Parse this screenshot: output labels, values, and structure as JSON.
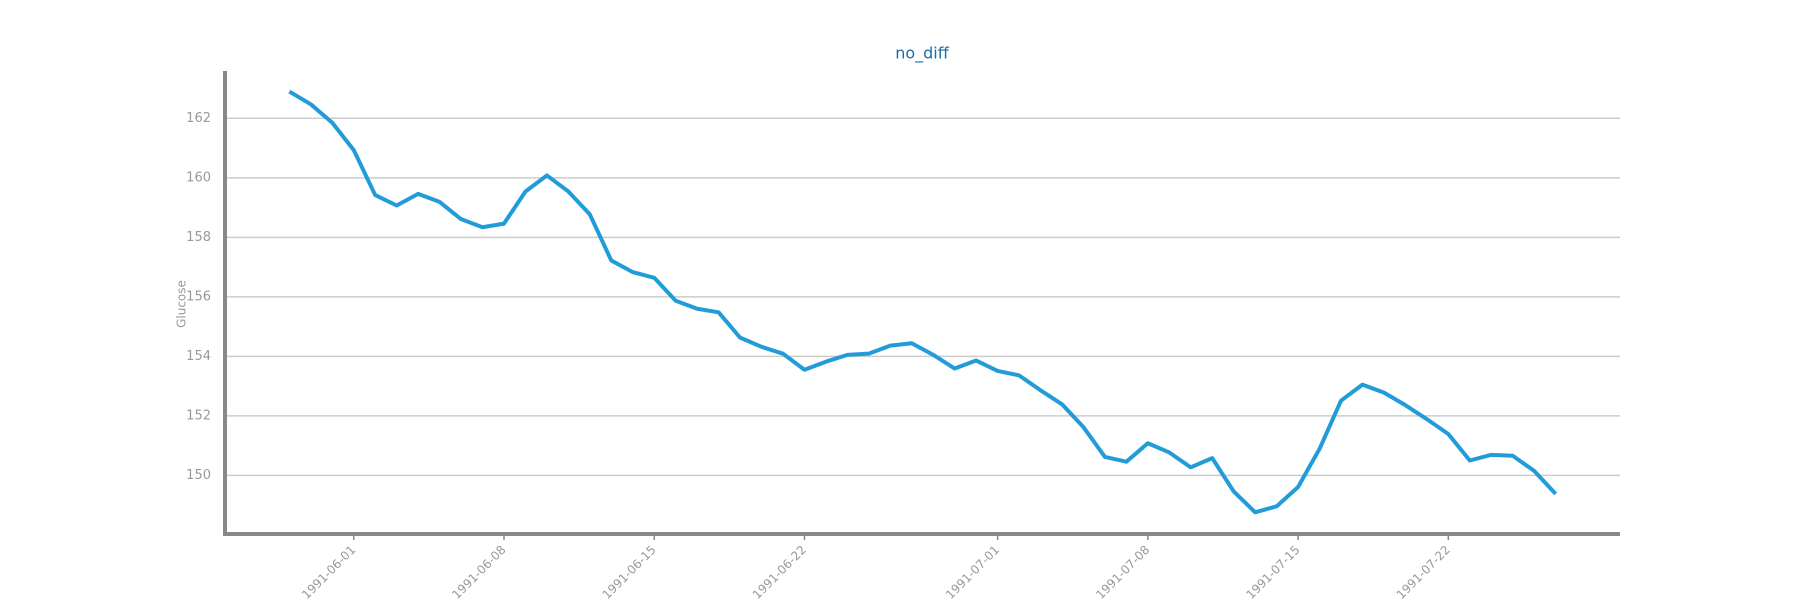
{
  "chart_data": {
    "type": "line",
    "title": "no_diff",
    "y_label": "Glucose",
    "x": [
      "1991-05-29",
      "1991-05-30",
      "1991-05-31",
      "1991-06-01",
      "1991-06-02",
      "1991-06-03",
      "1991-06-04",
      "1991-06-05",
      "1991-06-06",
      "1991-06-07",
      "1991-06-08",
      "1991-06-09",
      "1991-06-10",
      "1991-06-11",
      "1991-06-12",
      "1991-06-13",
      "1991-06-14",
      "1991-06-15",
      "1991-06-16",
      "1991-06-17",
      "1991-06-18",
      "1991-06-19",
      "1991-06-20",
      "1991-06-21",
      "1991-06-22",
      "1991-06-23",
      "1991-06-24",
      "1991-06-25",
      "1991-06-26",
      "1991-06-27",
      "1991-06-28",
      "1991-06-29",
      "1991-06-30",
      "1991-07-01",
      "1991-07-02",
      "1991-07-03",
      "1991-07-04",
      "1991-07-05",
      "1991-07-06",
      "1991-07-07",
      "1991-07-08",
      "1991-07-09",
      "1991-07-10",
      "1991-07-11",
      "1991-07-12",
      "1991-07-13",
      "1991-07-14",
      "1991-07-15",
      "1991-07-16",
      "1991-07-17",
      "1991-07-18",
      "1991-07-19",
      "1991-07-20",
      "1991-07-21",
      "1991-07-22",
      "1991-07-23",
      "1991-07-24",
      "1991-07-25",
      "1991-07-26",
      "1991-07-27"
    ],
    "series": [
      {
        "name": "no_diff",
        "color": "#229cd8",
        "values": [
          162.9,
          162.47,
          161.85,
          160.93,
          159.42,
          159.07,
          159.46,
          159.19,
          158.61,
          158.34,
          158.46,
          159.54,
          160.08,
          159.54,
          158.77,
          157.22,
          156.83,
          156.64,
          155.87,
          155.6,
          155.48,
          154.63,
          154.32,
          154.09,
          153.55,
          153.82,
          154.05,
          154.09,
          154.36,
          154.44,
          154.05,
          153.59,
          153.86,
          153.51,
          153.36,
          152.86,
          152.39,
          151.62,
          150.62,
          150.46,
          151.08,
          150.77,
          150.27,
          150.58,
          149.46,
          148.76,
          148.96,
          149.61,
          150.89,
          152.51,
          153.05,
          152.78,
          152.36,
          151.89,
          151.39,
          150.5,
          150.69,
          150.66,
          150.15,
          149.38
        ]
      }
    ],
    "xlim": [
      "1991-05-26",
      "1991-07-30"
    ],
    "xticks": [
      "1991-06-01",
      "1991-06-08",
      "1991-06-15",
      "1991-06-22",
      "1991-07-01",
      "1991-07-08",
      "1991-07-15",
      "1991-07-22"
    ],
    "ylim": [
      148.03,
      163.59
    ],
    "yticks": [
      150,
      152,
      154,
      156,
      158,
      160,
      162
    ],
    "grid": true
  }
}
